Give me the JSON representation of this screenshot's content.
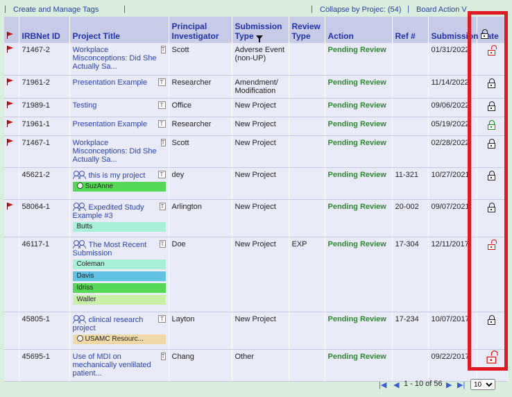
{
  "toolbar": {
    "create_tags": "Create and Manage Tags",
    "collapse": "Collapse by Projec: (54)",
    "board_action": "Board Action V"
  },
  "columns": [
    "IRBNet ID",
    "Project Title",
    "Principal Investigator",
    "Submission Type",
    "Review Type",
    "Action",
    "Ref #",
    "Submission Date"
  ],
  "rows": [
    {
      "flag": true,
      "id": "71467-2",
      "title": "Workplace Misconceptions: Did She Actually Sa...",
      "pi": "Scott",
      "type": "Adverse Event (non-UP)",
      "review": "",
      "action": "Pending Review",
      "ref": "",
      "date": "01/31/2022",
      "lock": "open-red",
      "tags": []
    },
    {
      "flag": true,
      "id": "71961-2",
      "title": "Presentation Example",
      "pi": "Researcher",
      "type": "Amendment/ Modification",
      "review": "",
      "action": "Pending Review",
      "ref": "",
      "date": "11/14/2022",
      "lock": "closed",
      "tags": []
    },
    {
      "flag": true,
      "id": "71989-1",
      "title": "Testing",
      "pi": "Office",
      "type": "New Project",
      "review": "",
      "action": "Pending Review",
      "ref": "",
      "date": "09/06/2022",
      "lock": "closed",
      "tags": []
    },
    {
      "flag": true,
      "id": "71961-1",
      "title": "Presentation Example",
      "pi": "Researcher",
      "type": "New Project",
      "review": "",
      "action": "Pending Review",
      "ref": "",
      "date": "05/19/2022",
      "lock": "green",
      "tags": []
    },
    {
      "flag": true,
      "id": "71467-1",
      "title": "Workplace Misconceptions: Did She Actually Sa...",
      "pi": "Scott",
      "type": "New Project",
      "review": "",
      "action": "Pending Review",
      "ref": "",
      "date": "02/28/2022",
      "lock": "closed",
      "tags": []
    },
    {
      "flag": false,
      "id": "45621-2",
      "title": "this is my project",
      "pi": "dey",
      "type": "New Project",
      "review": "",
      "action": "Pending Review",
      "ref": "11-321",
      "date": "10/27/2021",
      "lock": "closed",
      "team": true,
      "tags": [
        {
          "label": "SuzAnne",
          "color": "#55d855",
          "circle": true
        }
      ]
    },
    {
      "flag": true,
      "id": "58064-1",
      "title": "Expedited Study Example #3",
      "pi": "Arlington",
      "type": "New Project",
      "review": "",
      "action": "Pending Review",
      "ref": "20-002",
      "date": "09/07/2021",
      "lock": "closed",
      "team": true,
      "tags": [
        {
          "label": "Butts",
          "color": "#a8f0d8",
          "circle": false
        }
      ]
    },
    {
      "flag": false,
      "id": "46117-1",
      "title": "The Most Recent Submission",
      "pi": "Doe",
      "type": "New Project",
      "review": "EXP",
      "action": "Pending Review",
      "ref": "17-304",
      "date": "12/11/2017",
      "lock": "open-red",
      "team": true,
      "tags": [
        {
          "label": "Coleman",
          "color": "#a8f0d8",
          "circle": false
        },
        {
          "label": "Davis",
          "color": "#62c3e6",
          "circle": false
        },
        {
          "label": "Idriss",
          "color": "#55d855",
          "circle": false
        },
        {
          "label": "Waller",
          "color": "#c8f0a8",
          "circle": false
        }
      ]
    },
    {
      "flag": false,
      "id": "45805-1",
      "title": "clinical research project",
      "pi": "Layton",
      "type": "New Project",
      "review": "",
      "action": "Pending Review",
      "ref": "17-234",
      "date": "10/07/2017",
      "lock": "closed",
      "team": true,
      "tags": [
        {
          "label": "USAMC Resourc...",
          "color": "#f0d8a8",
          "circle": true
        }
      ]
    },
    {
      "flag": false,
      "id": "45695-1",
      "title": "Use of MDI on mechanically venlilated patient...",
      "pi": "Chang",
      "type": "Other",
      "review": "",
      "action": "Pending Review",
      "ref": "",
      "date": "09/22/2017",
      "lock": "open-red-big",
      "tags": []
    }
  ],
  "pager": {
    "range": "1 - 10 of 56",
    "page_size": "10"
  }
}
